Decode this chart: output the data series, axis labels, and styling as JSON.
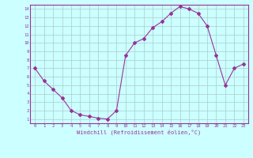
{
  "x": [
    0,
    1,
    2,
    3,
    4,
    5,
    6,
    7,
    8,
    9,
    10,
    11,
    12,
    13,
    14,
    15,
    16,
    17,
    18,
    19,
    20,
    21,
    22,
    23
  ],
  "y": [
    7.0,
    5.5,
    4.5,
    3.5,
    2.0,
    1.5,
    1.3,
    1.1,
    1.0,
    2.0,
    8.5,
    10.0,
    10.5,
    11.8,
    12.5,
    13.5,
    14.3,
    14.0,
    13.5,
    12.0,
    8.5,
    5.0,
    7.0,
    7.5
  ],
  "line_color": "#993399",
  "marker": "D",
  "marker_size": 2,
  "bg_color": "#ccffff",
  "grid_color": "#aacccc",
  "xlabel": "Windchill (Refroidissement éolien,°C)",
  "xlabel_color": "#993399",
  "tick_color": "#993399",
  "axis_color": "#993399",
  "xlim": [
    -0.5,
    23.5
  ],
  "ylim": [
    0.5,
    14.5
  ],
  "xticks": [
    0,
    1,
    2,
    3,
    4,
    5,
    6,
    7,
    8,
    9,
    10,
    11,
    12,
    13,
    14,
    15,
    16,
    17,
    18,
    19,
    20,
    21,
    22,
    23
  ],
  "yticks": [
    1,
    2,
    3,
    4,
    5,
    6,
    7,
    8,
    9,
    10,
    11,
    12,
    13,
    14
  ],
  "figsize": [
    3.2,
    2.0
  ],
  "dpi": 100
}
